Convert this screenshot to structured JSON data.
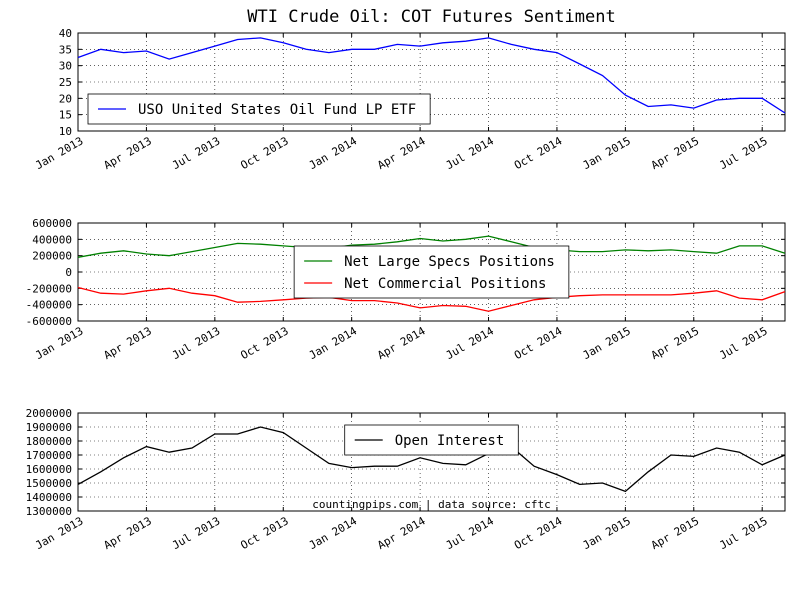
{
  "chart_data": [
    {
      "type": "line",
      "title": "WTI Crude Oil: COT Futures Sentiment",
      "x": [
        "2013-01",
        "2013-02",
        "2013-03",
        "2013-04",
        "2013-05",
        "2013-06",
        "2013-07",
        "2013-08",
        "2013-09",
        "2013-10",
        "2013-11",
        "2013-12",
        "2014-01",
        "2014-02",
        "2014-03",
        "2014-04",
        "2014-05",
        "2014-06",
        "2014-07",
        "2014-08",
        "2014-09",
        "2014-10",
        "2014-11",
        "2014-12",
        "2015-01",
        "2015-02",
        "2015-03",
        "2015-04",
        "2015-05",
        "2015-06",
        "2015-07",
        "2015-08"
      ],
      "series": [
        {
          "name": "USO United States Oil Fund LP ETF",
          "color": "#0000ff",
          "values": [
            32.5,
            35,
            34,
            34.5,
            32,
            34,
            36,
            38,
            38.5,
            37,
            35,
            34,
            35,
            35,
            36.5,
            36,
            37,
            37.5,
            38.5,
            36.5,
            35,
            34,
            30.5,
            27,
            21,
            17.5,
            18,
            17,
            19.5,
            20,
            20,
            15.5
          ]
        }
      ],
      "xlim": [
        "2013-01",
        "2015-08"
      ],
      "xticks": [
        {
          "value": "2013-01",
          "label": "Jan 2013"
        },
        {
          "value": "2013-04",
          "label": "Apr 2013"
        },
        {
          "value": "2013-07",
          "label": "Jul 2013"
        },
        {
          "value": "2013-10",
          "label": "Oct 2013"
        },
        {
          "value": "2014-01",
          "label": "Jan 2014"
        },
        {
          "value": "2014-04",
          "label": "Apr 2014"
        },
        {
          "value": "2014-07",
          "label": "Jul 2014"
        },
        {
          "value": "2014-10",
          "label": "Oct 2014"
        },
        {
          "value": "2015-01",
          "label": "Jan 2015"
        },
        {
          "value": "2015-04",
          "label": "Apr 2015"
        },
        {
          "value": "2015-07",
          "label": "Jul 2015"
        }
      ],
      "ylim": [
        10,
        40
      ],
      "yticks": [
        10,
        15,
        20,
        25,
        30,
        35,
        40
      ],
      "grid": true,
      "legend": "lower left"
    },
    {
      "type": "line",
      "x": [
        "2013-01",
        "2013-02",
        "2013-03",
        "2013-04",
        "2013-05",
        "2013-06",
        "2013-07",
        "2013-08",
        "2013-09",
        "2013-10",
        "2013-11",
        "2013-12",
        "2014-01",
        "2014-02",
        "2014-03",
        "2014-04",
        "2014-05",
        "2014-06",
        "2014-07",
        "2014-08",
        "2014-09",
        "2014-10",
        "2014-11",
        "2014-12",
        "2015-01",
        "2015-02",
        "2015-03",
        "2015-04",
        "2015-05",
        "2015-06",
        "2015-07",
        "2015-08"
      ],
      "series": [
        {
          "name": "Net Large Specs Positions",
          "color": "#008000",
          "values": [
            180000,
            230000,
            260000,
            220000,
            200000,
            250000,
            300000,
            350000,
            340000,
            320000,
            300000,
            290000,
            330000,
            340000,
            370000,
            410000,
            380000,
            400000,
            440000,
            370000,
            300000,
            270000,
            250000,
            250000,
            270000,
            260000,
            270000,
            250000,
            230000,
            320000,
            320000,
            230000
          ]
        },
        {
          "name": "Net Commercial Positions",
          "color": "#ff0000",
          "values": [
            -190000,
            -260000,
            -270000,
            -230000,
            -200000,
            -260000,
            -290000,
            -370000,
            -360000,
            -340000,
            -320000,
            -310000,
            -350000,
            -350000,
            -380000,
            -440000,
            -410000,
            -420000,
            -480000,
            -410000,
            -340000,
            -310000,
            -290000,
            -280000,
            -280000,
            -280000,
            -280000,
            -260000,
            -230000,
            -320000,
            -340000,
            -240000
          ]
        }
      ],
      "xlim": [
        "2013-01",
        "2015-08"
      ],
      "xticks": [
        {
          "value": "2013-01",
          "label": "Jan 2013"
        },
        {
          "value": "2013-04",
          "label": "Apr 2013"
        },
        {
          "value": "2013-07",
          "label": "Jul 2013"
        },
        {
          "value": "2013-10",
          "label": "Oct 2013"
        },
        {
          "value": "2014-01",
          "label": "Jan 2014"
        },
        {
          "value": "2014-04",
          "label": "Apr 2014"
        },
        {
          "value": "2014-07",
          "label": "Jul 2014"
        },
        {
          "value": "2014-10",
          "label": "Oct 2014"
        },
        {
          "value": "2015-01",
          "label": "Jan 2015"
        },
        {
          "value": "2015-04",
          "label": "Apr 2015"
        },
        {
          "value": "2015-07",
          "label": "Jul 2015"
        }
      ],
      "ylim": [
        -600000,
        600000
      ],
      "yticks": [
        -600000,
        -400000,
        -200000,
        0,
        200000,
        400000,
        600000
      ],
      "grid": true,
      "legend": "center"
    },
    {
      "type": "line",
      "annotation": "countingpips.com | data source: cftc",
      "x": [
        "2013-01",
        "2013-02",
        "2013-03",
        "2013-04",
        "2013-05",
        "2013-06",
        "2013-07",
        "2013-08",
        "2013-09",
        "2013-10",
        "2013-11",
        "2013-12",
        "2014-01",
        "2014-02",
        "2014-03",
        "2014-04",
        "2014-05",
        "2014-06",
        "2014-07",
        "2014-08",
        "2014-09",
        "2014-10",
        "2014-11",
        "2014-12",
        "2015-01",
        "2015-02",
        "2015-03",
        "2015-04",
        "2015-05",
        "2015-06",
        "2015-07",
        "2015-08"
      ],
      "series": [
        {
          "name": "Open Interest",
          "color": "#000000",
          "values": [
            1490000,
            1580000,
            1680000,
            1760000,
            1720000,
            1750000,
            1850000,
            1850000,
            1900000,
            1860000,
            1750000,
            1640000,
            1610000,
            1620000,
            1620000,
            1680000,
            1640000,
            1630000,
            1710000,
            1760000,
            1620000,
            1560000,
            1490000,
            1500000,
            1440000,
            1580000,
            1700000,
            1690000,
            1750000,
            1720000,
            1630000,
            1700000
          ]
        }
      ],
      "xlim": [
        "2013-01",
        "2015-08"
      ],
      "xticks": [
        {
          "value": "2013-01",
          "label": "Jan 2013"
        },
        {
          "value": "2013-04",
          "label": "Apr 2013"
        },
        {
          "value": "2013-07",
          "label": "Jul 2013"
        },
        {
          "value": "2013-10",
          "label": "Oct 2013"
        },
        {
          "value": "2014-01",
          "label": "Jan 2014"
        },
        {
          "value": "2014-04",
          "label": "Apr 2014"
        },
        {
          "value": "2014-07",
          "label": "Jul 2014"
        },
        {
          "value": "2014-10",
          "label": "Oct 2014"
        },
        {
          "value": "2015-01",
          "label": "Jan 2015"
        },
        {
          "value": "2015-04",
          "label": "Apr 2015"
        },
        {
          "value": "2015-07",
          "label": "Jul 2015"
        }
      ],
      "ylim": [
        1300000,
        2000000
      ],
      "yticks": [
        1300000,
        1400000,
        1500000,
        1600000,
        1700000,
        1800000,
        1900000,
        2000000
      ],
      "grid": true,
      "legend": "upper center"
    }
  ]
}
